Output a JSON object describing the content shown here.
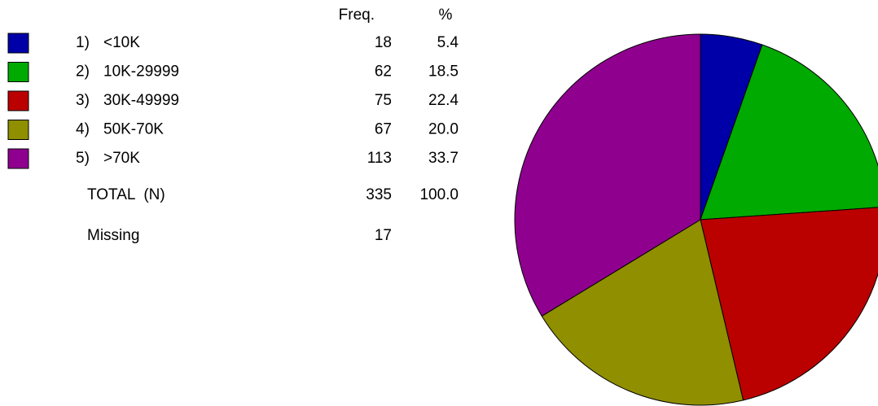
{
  "chart_data": {
    "type": "pie",
    "header_freq": "Freq.",
    "header_percent": "%",
    "category_numbers": [
      "1)",
      "2)",
      "3)",
      "4)",
      "5)"
    ],
    "categories": [
      "<10K",
      "10K-29999",
      "30K-49999",
      "50K-70K",
      ">70K"
    ],
    "values": [
      18,
      62,
      75,
      67,
      113
    ],
    "percents": [
      5.4,
      18.5,
      22.4,
      20.0,
      33.7
    ],
    "percent_labels": [
      "5.4",
      "18.5",
      "22.4",
      "20.0",
      "33.7"
    ],
    "colors": [
      "#0000a8",
      "#00aa00",
      "#bb0000",
      "#8f8f00",
      "#8f008f"
    ],
    "total_label": "TOTAL  (N)",
    "total_freq": 335,
    "total_percent": 100,
    "total_percent_label": "100.0",
    "missing_label": "Missing",
    "missing_freq": 17
  }
}
